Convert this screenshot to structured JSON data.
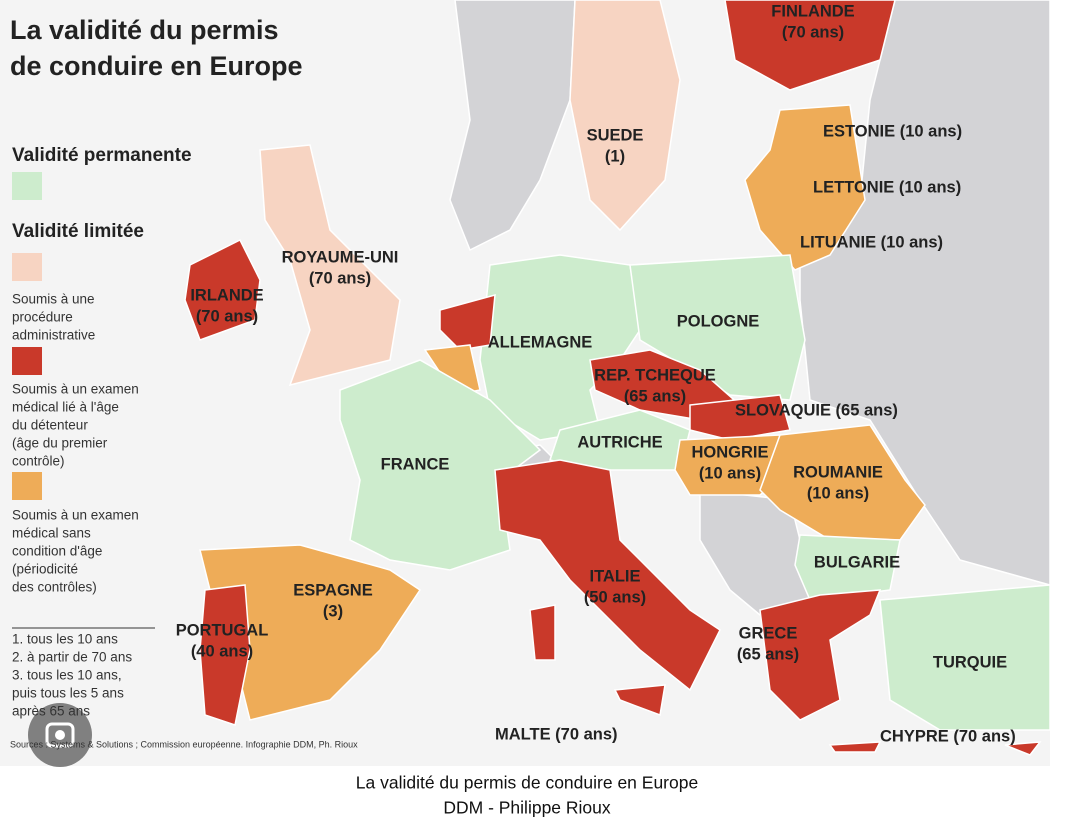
{
  "title": [
    "La validité du permis",
    "de conduire en Europe"
  ],
  "legend": {
    "permanent": "Validité permanente",
    "limited": "Validité limitée",
    "items": [
      [
        "Soumis à une",
        "procédure",
        "administrative"
      ],
      [
        "Soumis à un examen",
        "médical lié à l'âge",
        "du détenteur",
        "(âge du premier",
        "contrôle)"
      ],
      [
        "Soumis à un examen",
        "médical sans",
        "condition d'âge",
        "(périodicité",
        "des contrôles)"
      ]
    ]
  },
  "notes": [
    "1. tous les 10 ans",
    "2. à partir de 70 ans",
    "3. tous les 10 ans,",
    "puis tous les 5 ans",
    "après 65 ans"
  ],
  "source": "Sources : Systems & Solutions ; Commission européenne. Infographie DDM, Ph. Rioux",
  "countries": [
    [
      "FINLANDE",
      "(70 ans)"
    ],
    [
      "SUEDE",
      "(1)"
    ],
    [
      "ESTONIE (10 ans)"
    ],
    [
      "LETTONIE (10 ans)"
    ],
    [
      "LITUANIE (10 ans)"
    ],
    [
      "ROYAUME-UNI",
      "(70 ans)"
    ],
    [
      "IRLANDE",
      "(70 ans)"
    ],
    [
      "ALLEMAGNE"
    ],
    [
      "POLOGNE"
    ],
    [
      "REP. TCHEQUE",
      "(65 ans)"
    ],
    [
      "SLOVAQUIE (65 ans)"
    ],
    [
      "AUTRICHE"
    ],
    [
      "HONGRIE",
      "(10 ans)"
    ],
    [
      "ROUMANIE",
      "(10 ans)"
    ],
    [
      "FRANCE"
    ],
    [
      "BULGARIE"
    ],
    [
      "ESPAGNE",
      "(3)"
    ],
    [
      "ITALIE",
      "(50 ans)"
    ],
    [
      "PORTUGAL",
      "(40 ans)"
    ],
    [
      "GRECE",
      "(65 ans)"
    ],
    [
      "TURQUIE"
    ],
    [
      "MALTE (70 ans)"
    ],
    [
      "CHYPRE (70 ans)"
    ]
  ],
  "caption": [
    "La validité du permis de conduire en Europe",
    "DDM - Philippe Rioux"
  ]
}
